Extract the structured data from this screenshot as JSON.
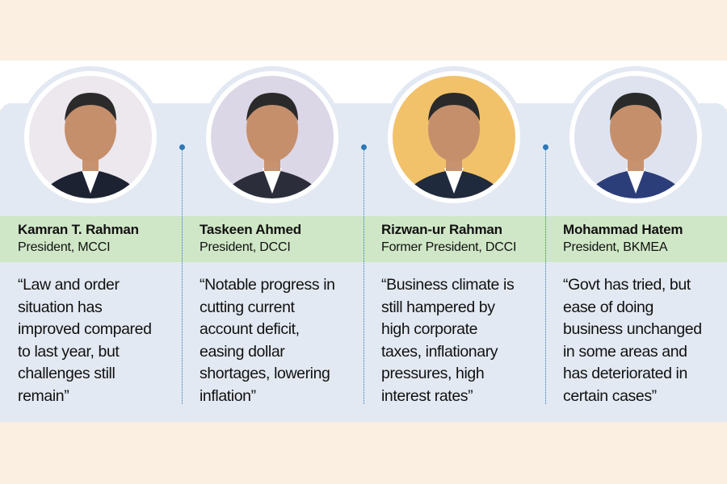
{
  "people": [
    {
      "name": "Kamran T. Rahman",
      "title": "President, MCCI",
      "quote": [
        "“Law and order",
        "situation has",
        "improved compared",
        "to last year, but",
        "challenges still",
        "remain”"
      ]
    },
    {
      "name": "Taskeen Ahmed",
      "title": "President, DCCI",
      "quote": [
        "“Notable progress in",
        "cutting current",
        "account deficit,",
        "easing dollar",
        "shortages, lowering",
        "inflation”"
      ]
    },
    {
      "name": "Rizwan-ur Rahman",
      "title": "Former President, DCCI",
      "quote": [
        "“Business climate is",
        "still hampered by",
        "high corporate",
        "taxes, inflationary",
        "pressures, high",
        "interest rates”"
      ]
    },
    {
      "name": "Mohammad Hatem",
      "title": "President, BKMEA",
      "quote": [
        "“Govt has tried, but",
        "ease of doing",
        "business unchanged",
        "in some areas and",
        "has deteriorated in",
        "certain cases”"
      ]
    }
  ]
}
